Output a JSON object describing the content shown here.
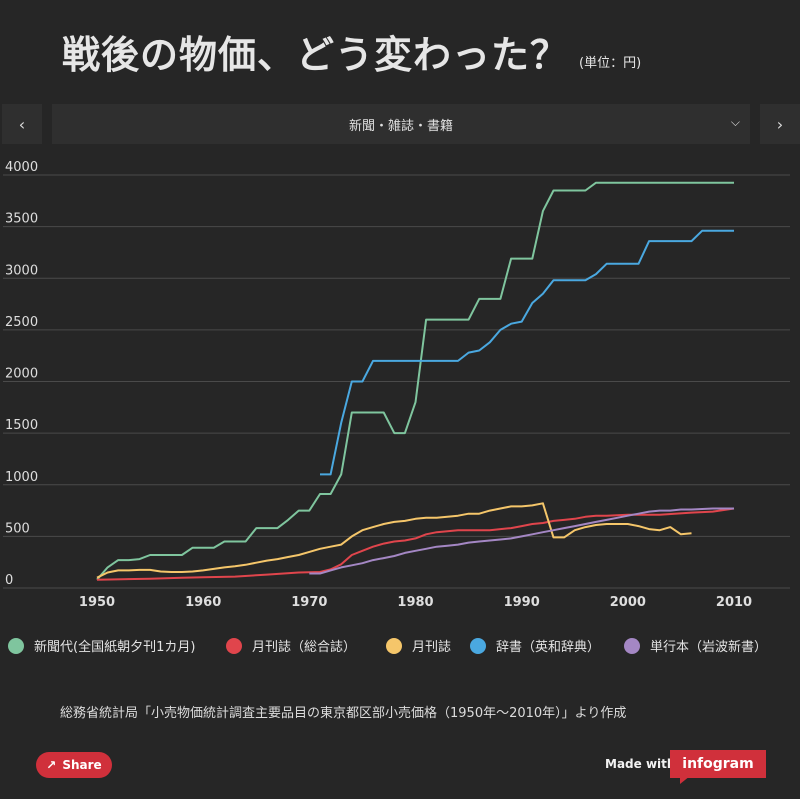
{
  "header": {
    "title": "戦後の物価、どう変わった？",
    "unit": "(単位：円)"
  },
  "selector": {
    "label": "新聞・雑誌・書籍",
    "prev_icon": "chevron-left-icon",
    "next_icon": "chevron-right-icon",
    "dropdown_icon": "chevron-down-icon"
  },
  "chart_data": {
    "type": "line",
    "title": "",
    "xlabel": "",
    "ylabel": "",
    "xlim": [
      1950,
      2010
    ],
    "ylim": [
      0,
      4000
    ],
    "yticks": [
      0,
      500,
      1000,
      1500,
      2000,
      2500,
      3000,
      3500,
      4000
    ],
    "xticks": [
      1950,
      1960,
      1970,
      1980,
      1990,
      2000,
      2010
    ],
    "series": [
      {
        "name": "新聞代(全国紙朝夕刊1カ月)",
        "color": "#7fc59e",
        "points": [
          [
            1950,
            80
          ],
          [
            1951,
            200
          ],
          [
            1952,
            270
          ],
          [
            1953,
            270
          ],
          [
            1954,
            280
          ],
          [
            1955,
            320
          ],
          [
            1956,
            320
          ],
          [
            1957,
            320
          ],
          [
            1958,
            320
          ],
          [
            1959,
            390
          ],
          [
            1960,
            390
          ],
          [
            1961,
            390
          ],
          [
            1962,
            450
          ],
          [
            1963,
            450
          ],
          [
            1964,
            450
          ],
          [
            1965,
            580
          ],
          [
            1966,
            580
          ],
          [
            1967,
            580
          ],
          [
            1968,
            660
          ],
          [
            1969,
            750
          ],
          [
            1970,
            750
          ],
          [
            1971,
            910
          ],
          [
            1972,
            910
          ],
          [
            1973,
            1100
          ],
          [
            1974,
            1700
          ],
          [
            1975,
            1700
          ],
          [
            1976,
            1700
          ],
          [
            1977,
            1700
          ],
          [
            1978,
            1500
          ],
          [
            1979,
            1500
          ],
          [
            1980,
            1800
          ],
          [
            1981,
            2600
          ],
          [
            1982,
            2600
          ],
          [
            1983,
            2600
          ],
          [
            1984,
            2600
          ],
          [
            1985,
            2600
          ],
          [
            1986,
            2800
          ],
          [
            1987,
            2800
          ],
          [
            1988,
            2800
          ],
          [
            1989,
            3190
          ],
          [
            1990,
            3190
          ],
          [
            1991,
            3190
          ],
          [
            1992,
            3650
          ],
          [
            1993,
            3850
          ],
          [
            1994,
            3850
          ],
          [
            1995,
            3850
          ],
          [
            1996,
            3850
          ],
          [
            1997,
            3925
          ],
          [
            1998,
            3925
          ],
          [
            2000,
            3925
          ],
          [
            2005,
            3925
          ],
          [
            2010,
            3925
          ]
        ]
      },
      {
        "name": "月刊誌（総合誌）",
        "color": "#e0454c",
        "points": [
          [
            1950,
            80
          ],
          [
            1955,
            90
          ],
          [
            1958,
            100
          ],
          [
            1960,
            105
          ],
          [
            1963,
            110
          ],
          [
            1966,
            130
          ],
          [
            1969,
            150
          ],
          [
            1971,
            155
          ],
          [
            1972,
            180
          ],
          [
            1973,
            230
          ],
          [
            1974,
            320
          ],
          [
            1975,
            360
          ],
          [
            1976,
            400
          ],
          [
            1977,
            430
          ],
          [
            1978,
            450
          ],
          [
            1979,
            460
          ],
          [
            1980,
            480
          ],
          [
            1981,
            520
          ],
          [
            1982,
            540
          ],
          [
            1983,
            550
          ],
          [
            1984,
            560
          ],
          [
            1985,
            560
          ],
          [
            1986,
            560
          ],
          [
            1987,
            560
          ],
          [
            1988,
            570
          ],
          [
            1989,
            580
          ],
          [
            1990,
            600
          ],
          [
            1991,
            620
          ],
          [
            1992,
            630
          ],
          [
            1993,
            650
          ],
          [
            1994,
            660
          ],
          [
            1995,
            670
          ],
          [
            1996,
            690
          ],
          [
            1997,
            700
          ],
          [
            1998,
            700
          ],
          [
            2000,
            710
          ],
          [
            2003,
            710
          ],
          [
            2006,
            730
          ],
          [
            2008,
            740
          ],
          [
            2010,
            770
          ]
        ]
      },
      {
        "name": "月刊誌",
        "color": "#f5c66a",
        "points": [
          [
            1950,
            100
          ],
          [
            1951,
            150
          ],
          [
            1952,
            170
          ],
          [
            1953,
            170
          ],
          [
            1954,
            175
          ],
          [
            1955,
            175
          ],
          [
            1956,
            160
          ],
          [
            1957,
            155
          ],
          [
            1958,
            155
          ],
          [
            1959,
            160
          ],
          [
            1960,
            170
          ],
          [
            1961,
            185
          ],
          [
            1962,
            200
          ],
          [
            1963,
            210
          ],
          [
            1964,
            225
          ],
          [
            1965,
            245
          ],
          [
            1966,
            265
          ],
          [
            1967,
            280
          ],
          [
            1968,
            300
          ],
          [
            1969,
            320
          ],
          [
            1970,
            350
          ],
          [
            1971,
            380
          ],
          [
            1972,
            400
          ],
          [
            1973,
            420
          ],
          [
            1974,
            500
          ],
          [
            1975,
            560
          ],
          [
            1976,
            590
          ],
          [
            1977,
            620
          ],
          [
            1978,
            640
          ],
          [
            1979,
            650
          ],
          [
            1980,
            670
          ],
          [
            1981,
            680
          ],
          [
            1982,
            680
          ],
          [
            1983,
            690
          ],
          [
            1984,
            700
          ],
          [
            1985,
            720
          ],
          [
            1986,
            720
          ],
          [
            1987,
            750
          ],
          [
            1988,
            770
          ],
          [
            1989,
            790
          ],
          [
            1990,
            790
          ],
          [
            1991,
            800
          ],
          [
            1992,
            820
          ],
          [
            1993,
            490
          ],
          [
            1994,
            490
          ],
          [
            1995,
            560
          ],
          [
            1996,
            590
          ],
          [
            1997,
            610
          ],
          [
            1998,
            620
          ],
          [
            1999,
            620
          ],
          [
            2000,
            620
          ],
          [
            2001,
            600
          ],
          [
            2002,
            570
          ],
          [
            2003,
            560
          ],
          [
            2004,
            590
          ],
          [
            2005,
            520
          ],
          [
            2006,
            530
          ]
        ]
      },
      {
        "name": "辞書（英和辞典）",
        "color": "#4aa8e0",
        "points": [
          [
            1971,
            1100
          ],
          [
            1972,
            1100
          ],
          [
            1973,
            1600
          ],
          [
            1974,
            2000
          ],
          [
            1975,
            2000
          ],
          [
            1976,
            2200
          ],
          [
            1977,
            2200
          ],
          [
            1978,
            2200
          ],
          [
            1979,
            2200
          ],
          [
            1980,
            2200
          ],
          [
            1981,
            2200
          ],
          [
            1982,
            2200
          ],
          [
            1983,
            2200
          ],
          [
            1984,
            2200
          ],
          [
            1985,
            2280
          ],
          [
            1986,
            2300
          ],
          [
            1987,
            2380
          ],
          [
            1988,
            2500
          ],
          [
            1989,
            2560
          ],
          [
            1990,
            2580
          ],
          [
            1991,
            2760
          ],
          [
            1992,
            2850
          ],
          [
            1993,
            2980
          ],
          [
            1994,
            2980
          ],
          [
            1995,
            2980
          ],
          [
            1996,
            2980
          ],
          [
            1997,
            3040
          ],
          [
            1998,
            3140
          ],
          [
            1999,
            3140
          ],
          [
            2000,
            3140
          ],
          [
            2001,
            3140
          ],
          [
            2002,
            3360
          ],
          [
            2003,
            3360
          ],
          [
            2004,
            3360
          ],
          [
            2005,
            3360
          ],
          [
            2006,
            3360
          ],
          [
            2007,
            3460
          ],
          [
            2008,
            3460
          ],
          [
            2010,
            3460
          ]
        ]
      },
      {
        "name": "単行本（岩波新書）",
        "color": "#a487c4",
        "points": [
          [
            1970,
            140
          ],
          [
            1971,
            140
          ],
          [
            1972,
            170
          ],
          [
            1973,
            200
          ],
          [
            1974,
            220
          ],
          [
            1975,
            240
          ],
          [
            1976,
            270
          ],
          [
            1977,
            290
          ],
          [
            1978,
            310
          ],
          [
            1979,
            340
          ],
          [
            1980,
            360
          ],
          [
            1981,
            380
          ],
          [
            1982,
            400
          ],
          [
            1983,
            410
          ],
          [
            1984,
            420
          ],
          [
            1985,
            440
          ],
          [
            1986,
            450
          ],
          [
            1987,
            460
          ],
          [
            1988,
            470
          ],
          [
            1989,
            480
          ],
          [
            1990,
            500
          ],
          [
            1991,
            520
          ],
          [
            1992,
            540
          ],
          [
            1993,
            560
          ],
          [
            1994,
            580
          ],
          [
            1995,
            600
          ],
          [
            1996,
            620
          ],
          [
            1997,
            640
          ],
          [
            1998,
            660
          ],
          [
            1999,
            680
          ],
          [
            2000,
            700
          ],
          [
            2001,
            720
          ],
          [
            2002,
            740
          ],
          [
            2003,
            750
          ],
          [
            2004,
            750
          ],
          [
            2005,
            760
          ],
          [
            2006,
            760
          ],
          [
            2008,
            770
          ],
          [
            2010,
            770
          ]
        ]
      }
    ]
  },
  "source_note": "総務省統計局「小売物価統計調査主要品目の東京都区部小売価格（1950年〜2010年）」より作成",
  "footer": {
    "share_label": "Share",
    "made_with": "Made with",
    "brand": "infogram"
  }
}
